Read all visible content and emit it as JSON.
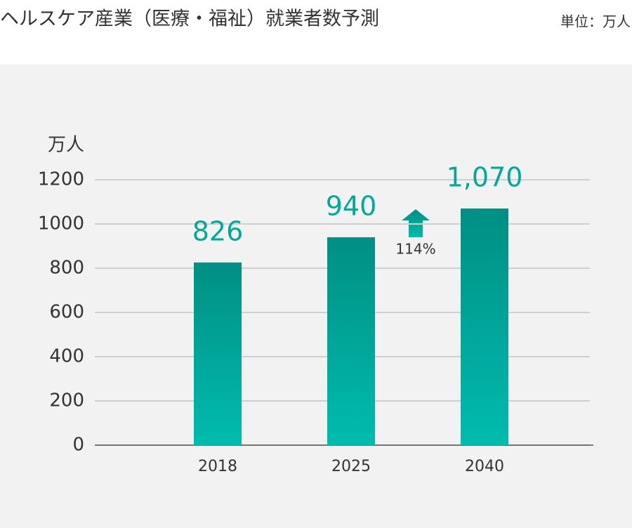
{
  "chart_data": {
    "type": "bar",
    "title": "ヘルスケア産業（医療・福祉）就業者数予測",
    "unit_label": "単位：万人",
    "y_axis_label": "万人",
    "categories": [
      "2018",
      "2025",
      "2040"
    ],
    "values": [
      826,
      940,
      1070
    ],
    "value_labels": [
      "826",
      "940",
      "1,070"
    ],
    "color": "#00a89a",
    "ylim": [
      0,
      1200
    ],
    "yticks": [
      0,
      200,
      400,
      600,
      800,
      1000,
      1200
    ],
    "grid": true,
    "annotation": "114%"
  }
}
